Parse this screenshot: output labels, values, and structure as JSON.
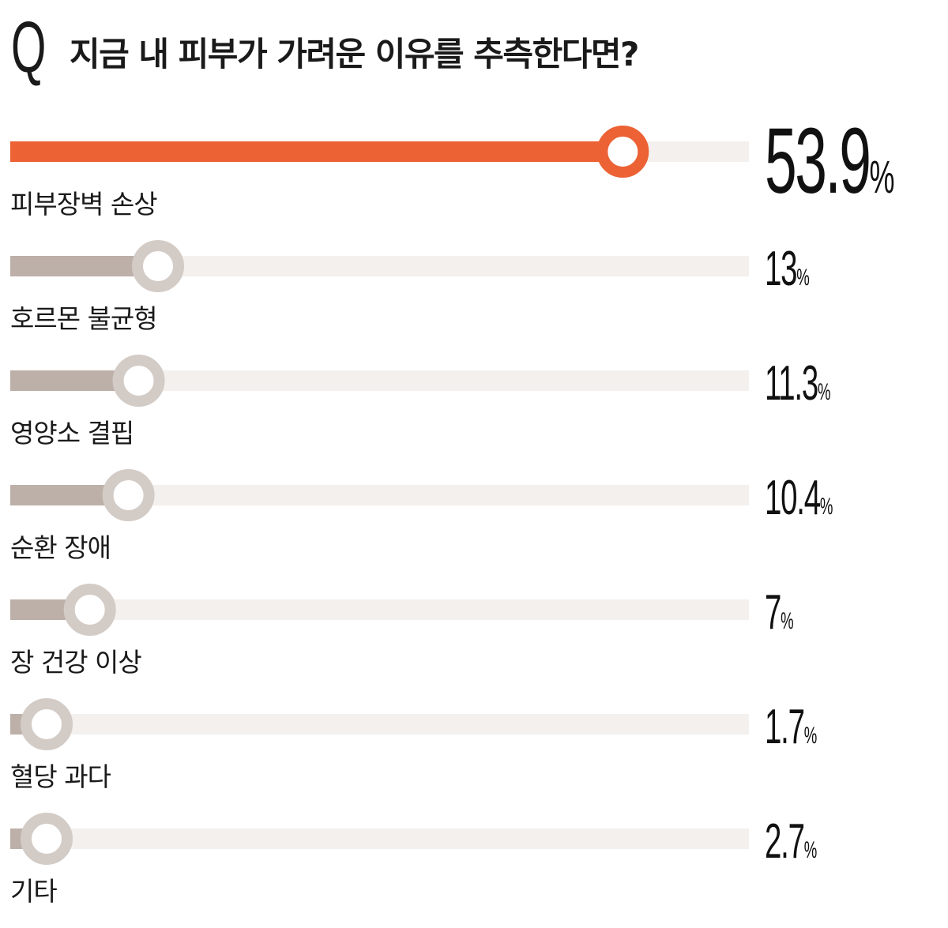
{
  "title": {
    "q_mark": "Q",
    "question": "지금 내 피부가 가려운 이유를 추측한다면?"
  },
  "colors": {
    "highlight": "#ec6235",
    "highlight_knob": "#ec6235",
    "bar": "#bdb0a8",
    "knob": "#d3cbc6",
    "track": "#f3f0ee",
    "text": "#1a1a1a"
  },
  "chart_data": {
    "type": "bar",
    "orientation": "horizontal",
    "unit": "%",
    "categories": [
      "피부장벽 손상",
      "호르몬 불균형",
      "영양소 결핍",
      "순환 장애",
      "장 건강 이상",
      "혈당 과다",
      "기타"
    ],
    "values": [
      53.9,
      13,
      11.3,
      10.4,
      7,
      1.7,
      2.7
    ],
    "value_labels": [
      "53.9",
      "13",
      "11.3",
      "10.4",
      "7",
      "1.7",
      "2.7"
    ],
    "highlight_index": 0,
    "xlim": [
      0,
      65
    ],
    "grid": false,
    "legend": "none"
  }
}
